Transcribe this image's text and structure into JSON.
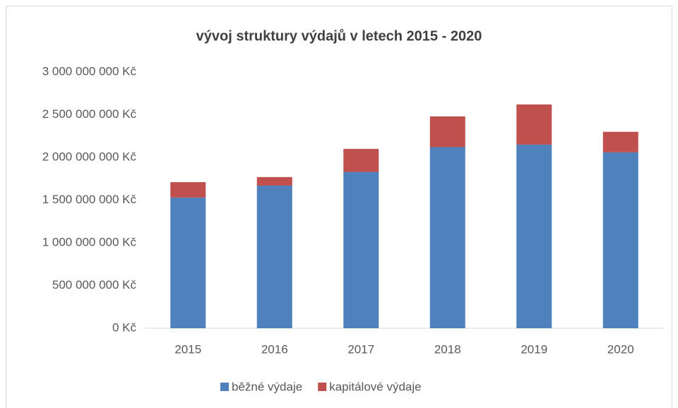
{
  "chart_data": {
    "type": "stacked_bar",
    "title": "vývoj struktury výdajů v letech 2015 - 2020",
    "categories": [
      "2015",
      "2016",
      "2017",
      "2018",
      "2019",
      "2020"
    ],
    "series": [
      {
        "name": "běžné výdaje",
        "color": "#4f81bd",
        "values": [
          1530000000,
          1670000000,
          1830000000,
          2120000000,
          2150000000,
          2060000000
        ]
      },
      {
        "name": "kapitálové výdaje",
        "color": "#c0504d",
        "values": [
          180000000,
          100000000,
          270000000,
          360000000,
          470000000,
          240000000
        ]
      }
    ],
    "ylim": [
      0,
      3000000000
    ],
    "yticks": [
      {
        "value": 0,
        "label": "0 Kč"
      },
      {
        "value": 500000000,
        "label": "500 000 000 Kč"
      },
      {
        "value": 1000000000,
        "label": "1 000 000 000 Kč"
      },
      {
        "value": 1500000000,
        "label": "1 500 000 000 Kč"
      },
      {
        "value": 2000000000,
        "label": "2 000 000 000 Kč"
      },
      {
        "value": 2500000000,
        "label": "2 500 000 000 Kč"
      },
      {
        "value": 3000000000,
        "label": "3 000 000 000 Kč"
      }
    ],
    "grid": false,
    "legend": "bottom"
  }
}
